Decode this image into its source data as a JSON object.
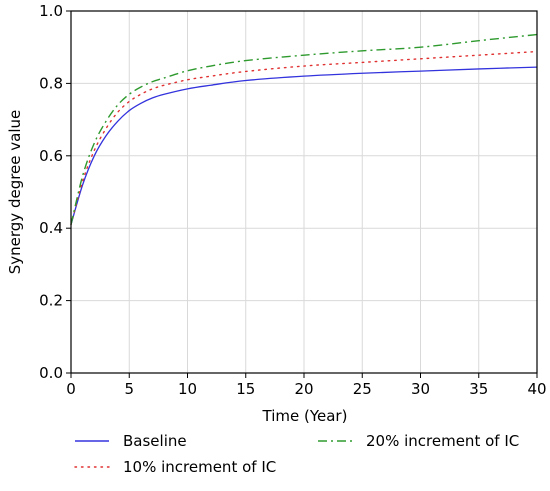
{
  "chart_data": {
    "type": "line",
    "xlabel": "Time (Year)",
    "ylabel": "Synergy degree value",
    "xlim": [
      0,
      40
    ],
    "ylim": [
      0.0,
      1.0
    ],
    "x_ticks": [
      "0",
      "5",
      "10",
      "15",
      "20",
      "25",
      "30",
      "35",
      "40"
    ],
    "y_ticks": [
      "0.0",
      "0.2",
      "0.4",
      "0.6",
      "0.8",
      "1.0"
    ],
    "grid": true,
    "legend_position": "bottom",
    "x": [
      0,
      1,
      2,
      3,
      4,
      5,
      6,
      7,
      8,
      10,
      12,
      15,
      20,
      25,
      30,
      35,
      40
    ],
    "series": [
      {
        "name": "Baseline",
        "color": "#3333dd",
        "style": "solid",
        "values": [
          0.41,
          0.52,
          0.6,
          0.655,
          0.695,
          0.725,
          0.745,
          0.76,
          0.77,
          0.785,
          0.795,
          0.808,
          0.82,
          0.828,
          0.834,
          0.84,
          0.845
        ]
      },
      {
        "name": "10% increment of IC",
        "color": "#e03030",
        "style": "dotted",
        "values": [
          0.41,
          0.53,
          0.615,
          0.675,
          0.72,
          0.75,
          0.77,
          0.785,
          0.795,
          0.81,
          0.82,
          0.833,
          0.848,
          0.858,
          0.868,
          0.878,
          0.888
        ]
      },
      {
        "name": "20% increment of IC",
        "color": "#2e9a2e",
        "style": "dashdot",
        "values": [
          0.41,
          0.545,
          0.635,
          0.695,
          0.74,
          0.77,
          0.79,
          0.805,
          0.815,
          0.835,
          0.848,
          0.863,
          0.878,
          0.89,
          0.9,
          0.918,
          0.935
        ]
      }
    ]
  }
}
